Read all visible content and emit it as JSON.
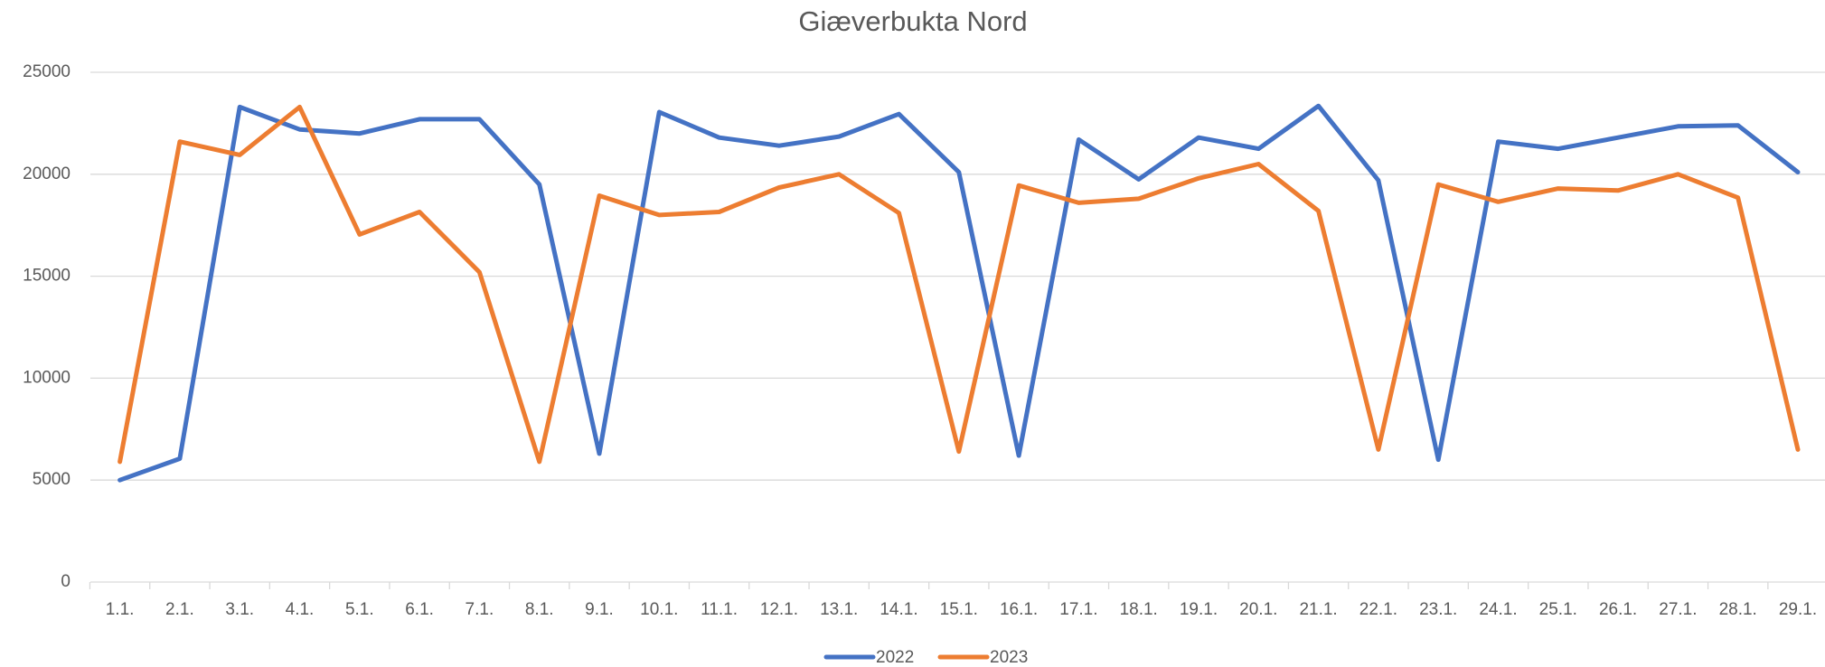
{
  "chart_data": {
    "type": "line",
    "title": "Giæverbukta Nord",
    "categories": [
      "1.1.",
      "2.1.",
      "3.1.",
      "4.1.",
      "5.1.",
      "6.1.",
      "7.1.",
      "8.1.",
      "9.1.",
      "10.1.",
      "11.1.",
      "12.1.",
      "13.1.",
      "14.1.",
      "15.1.",
      "16.1.",
      "17.1.",
      "18.1.",
      "19.1.",
      "20.1.",
      "21.1.",
      "22.1.",
      "23.1.",
      "24.1.",
      "25.1.",
      "26.1.",
      "27.1.",
      "28.1.",
      "29.1."
    ],
    "series": [
      {
        "name": "2022",
        "color": "#4472c4",
        "values": [
          5000,
          6050,
          23300,
          22200,
          22000,
          22700,
          22700,
          19500,
          6300,
          23050,
          21800,
          21400,
          21850,
          22950,
          20100,
          6200,
          21700,
          19750,
          21800,
          21250,
          23350,
          19700,
          6000,
          21600,
          21250,
          21800,
          22350,
          22400,
          20100
        ]
      },
      {
        "name": "2023",
        "color": "#ed7d31",
        "values": [
          5900,
          21600,
          20950,
          23300,
          17050,
          18150,
          15200,
          5900,
          18950,
          18000,
          18150,
          19350,
          20000,
          18100,
          6400,
          19450,
          18600,
          18800,
          19800,
          20500,
          18200,
          6500,
          19500,
          18650,
          19300,
          19200,
          20000,
          18850,
          6500
        ]
      }
    ],
    "ylim": [
      0,
      25000
    ],
    "yticks": [
      0,
      5000,
      10000,
      15000,
      20000,
      25000
    ],
    "grid": true,
    "legend": "bottom"
  }
}
